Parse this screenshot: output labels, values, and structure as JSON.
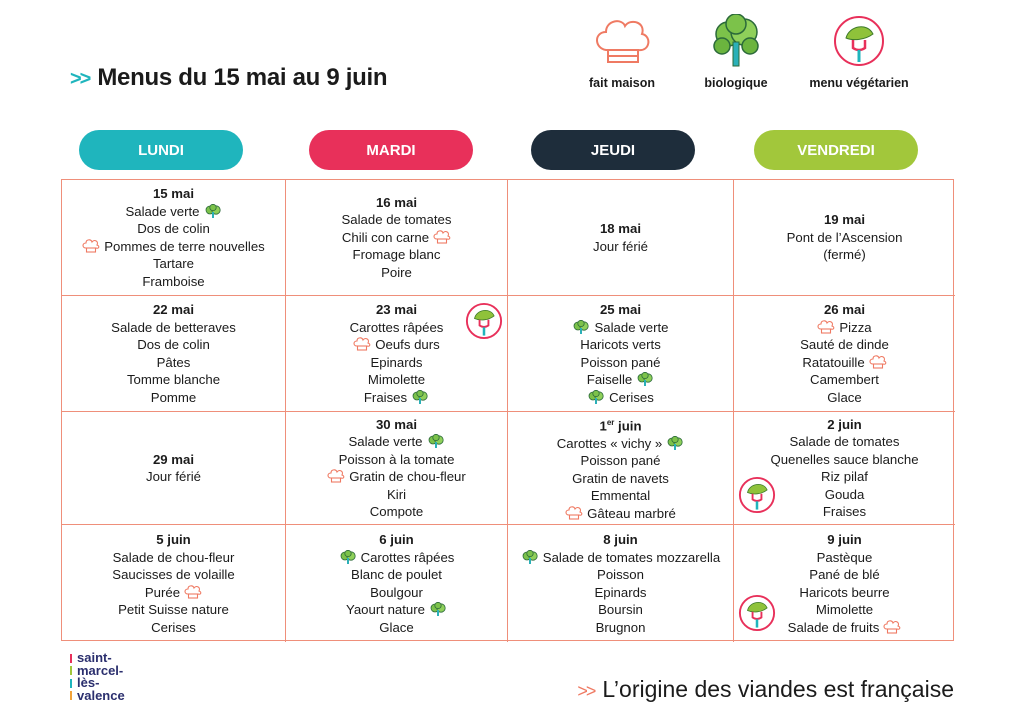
{
  "header": {
    "arrows": ">>",
    "title": "Menus du 15 mai au 9 juin"
  },
  "legend": [
    {
      "label": "fait maison",
      "icon": "chef-hat-icon"
    },
    {
      "label": "biologique",
      "icon": "tree-icon"
    },
    {
      "label": "menu végétarien",
      "icon": "vegetarian-fork-icon"
    }
  ],
  "days": [
    {
      "label": "LUNDI",
      "color": "#1fb5bd"
    },
    {
      "label": "MARDI",
      "color": "#e8305a"
    },
    {
      "label": "JEUDI",
      "color": "#1e2d3b"
    },
    {
      "label": "VENDREDI",
      "color": "#a2c73b"
    }
  ],
  "grid": {
    "rows": [
      [
        {
          "date": "15 mai",
          "items": [
            {
              "text": "Salade verte",
              "icon": "bio",
              "pos": "after"
            },
            {
              "text": "Dos de colin"
            },
            {
              "text": "Pommes de terre nouvelles",
              "icon": "chef",
              "pos": "before"
            },
            {
              "text": "Tartare"
            },
            {
              "text": "Framboise"
            }
          ]
        },
        {
          "date": "16 mai",
          "items": [
            {
              "text": "Salade de tomates"
            },
            {
              "text": "Chili con carne",
              "icon": "chef",
              "pos": "after"
            },
            {
              "text": "Fromage blanc"
            },
            {
              "text": "Poire"
            }
          ]
        },
        {
          "date": "18 mai",
          "items": [
            {
              "text": "Jour férié"
            }
          ]
        },
        {
          "date": "19 mai",
          "items": [
            {
              "text": "Pont de l’Ascension"
            },
            {
              "text": "(fermé)"
            }
          ]
        }
      ],
      [
        {
          "date": "22 mai",
          "items": [
            {
              "text": "Salade de betteraves"
            },
            {
              "text": "Dos de colin"
            },
            {
              "text": "Pâtes"
            },
            {
              "text": "Tomme blanche"
            },
            {
              "text": "Pomme"
            }
          ]
        },
        {
          "date": "23 mai",
          "veg": true,
          "items": [
            {
              "text": "Carottes râpées"
            },
            {
              "text": "Oeufs durs",
              "icon": "chef",
              "pos": "before"
            },
            {
              "text": "Epinards"
            },
            {
              "text": "Mimolette"
            },
            {
              "text": "Fraises",
              "icon": "bio",
              "pos": "after"
            }
          ]
        },
        {
          "date": "25 mai",
          "items": [
            {
              "text": "Salade verte",
              "icon": "bio",
              "pos": "before"
            },
            {
              "text": "Haricots verts"
            },
            {
              "text": "Poisson pané"
            },
            {
              "text": "Faiselle",
              "icon": "bio",
              "pos": "after"
            },
            {
              "text": "Cerises",
              "icon": "bio",
              "pos": "before"
            }
          ]
        },
        {
          "date": "26 mai",
          "items": [
            {
              "text": "Pizza",
              "icon": "chef",
              "pos": "before"
            },
            {
              "text": "Sauté de dinde"
            },
            {
              "text": "Ratatouille",
              "icon": "chef",
              "pos": "after"
            },
            {
              "text": "Camembert"
            },
            {
              "text": "Glace"
            }
          ]
        }
      ],
      [
        {
          "date": "29 mai",
          "items": [
            {
              "text": "Jour férié"
            }
          ]
        },
        {
          "date": "30 mai",
          "items": [
            {
              "text": "Salade verte",
              "icon": "bio",
              "pos": "after"
            },
            {
              "text": "Poisson à la tomate"
            },
            {
              "text": "Gratin de chou-fleur",
              "icon": "chef",
              "pos": "before"
            },
            {
              "text": "Kiri"
            },
            {
              "text": "Compote"
            }
          ]
        },
        {
          "date": "1",
          "date_sup": "er",
          "date_rest": " juin",
          "items": [
            {
              "text": "Carottes « vichy »",
              "icon": "bio",
              "pos": "after"
            },
            {
              "text": "Poisson pané"
            },
            {
              "text": "Gratin de navets"
            },
            {
              "text": "Emmental"
            },
            {
              "text": "Gâteau marbré",
              "icon": "chef",
              "pos": "before"
            }
          ]
        },
        {
          "date": "2 juin",
          "veg": true,
          "items": [
            {
              "text": "Salade de tomates"
            },
            {
              "text": "Quenelles sauce blanche"
            },
            {
              "text": "Riz pilaf"
            },
            {
              "text": "Gouda"
            },
            {
              "text": "Fraises"
            }
          ]
        }
      ],
      [
        {
          "date": "5 juin",
          "items": [
            {
              "text": "Salade de chou-fleur"
            },
            {
              "text": "Saucisses de volaille"
            },
            {
              "text": "Purée",
              "icon": "chef",
              "pos": "after"
            },
            {
              "text": "Petit Suisse nature"
            },
            {
              "text": "Cerises"
            }
          ]
        },
        {
          "date": "6 juin",
          "items": [
            {
              "text": "Carottes râpées",
              "icon": "bio",
              "pos": "before"
            },
            {
              "text": "Blanc de poulet"
            },
            {
              "text": "Boulgour"
            },
            {
              "text": "Yaourt nature",
              "icon": "bio",
              "pos": "after"
            },
            {
              "text": "Glace"
            }
          ]
        },
        {
          "date": "8 juin",
          "items": [
            {
              "text": "Salade de tomates mozzarella",
              "icon": "bio",
              "pos": "before"
            },
            {
              "text": "Poisson"
            },
            {
              "text": "Epinards"
            },
            {
              "text": "Boursin"
            },
            {
              "text": "Brugnon"
            }
          ]
        },
        {
          "date": "9 juin",
          "veg": true,
          "items": [
            {
              "text": "Pastèque"
            },
            {
              "text": "Pané de blé"
            },
            {
              "text": "Haricots beurre"
            },
            {
              "text": "Mimolette"
            },
            {
              "text": "Salade de fruits",
              "icon": "chef",
              "pos": "after"
            }
          ]
        }
      ]
    ]
  },
  "footer": {
    "arrows": ">>",
    "text": "L’origine des viandes est française"
  },
  "logo": {
    "lines": [
      "saint-",
      "marcel-",
      "lès-",
      "valence"
    ]
  },
  "colors": {
    "border": "#ef8f7a",
    "teal": "#1fb5bd",
    "red": "#e8305a",
    "dark": "#1e2d3b",
    "green": "#a2c73b"
  }
}
